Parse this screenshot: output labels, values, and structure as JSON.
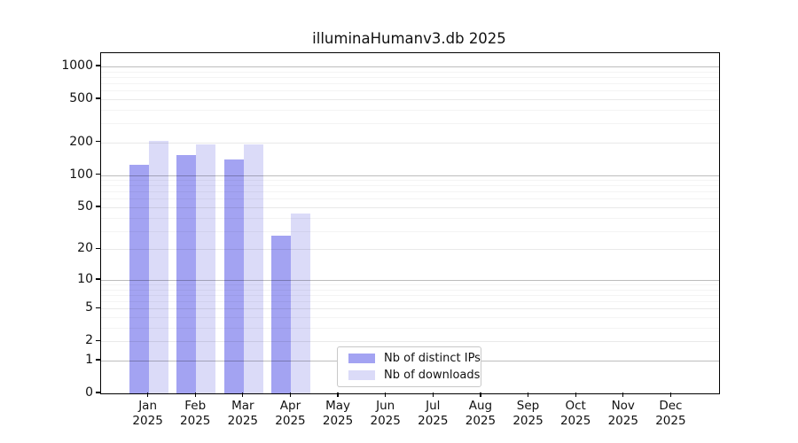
{
  "chart_data": {
    "type": "bar",
    "title": "illuminaHumanv3.db 2025",
    "scale": "log1p",
    "grid": "horizontal",
    "legend_position": "lower center",
    "xlabel": "",
    "ylabel": "",
    "categories": [
      "Jan",
      "Feb",
      "Mar",
      "Apr",
      "May",
      "Jun",
      "Jul",
      "Aug",
      "Sep",
      "Oct",
      "Nov",
      "Dec"
    ],
    "category_year": "2025",
    "series": [
      {
        "name": "Nb of distinct IPs",
        "color": "#a3a3f2",
        "values": [
          125,
          153,
          140,
          27,
          0,
          0,
          0,
          0,
          0,
          0,
          0,
          0
        ]
      },
      {
        "name": "Nb of downloads",
        "color": "#dbdbf8",
        "values": [
          205,
          190,
          190,
          44,
          0,
          0,
          0,
          0,
          0,
          0,
          0,
          0
        ]
      }
    ],
    "y_ticks": [
      0,
      1,
      2,
      5,
      10,
      20,
      50,
      100,
      200,
      500,
      1000
    ],
    "y_major_gridlines": [
      1,
      10,
      100,
      1000
    ],
    "y_minor_gridlines": [
      3,
      4,
      6,
      7,
      8,
      9,
      30,
      40,
      60,
      70,
      80,
      90,
      300,
      400,
      600,
      700,
      800,
      900
    ],
    "ylim": [
      0,
      1330
    ]
  }
}
